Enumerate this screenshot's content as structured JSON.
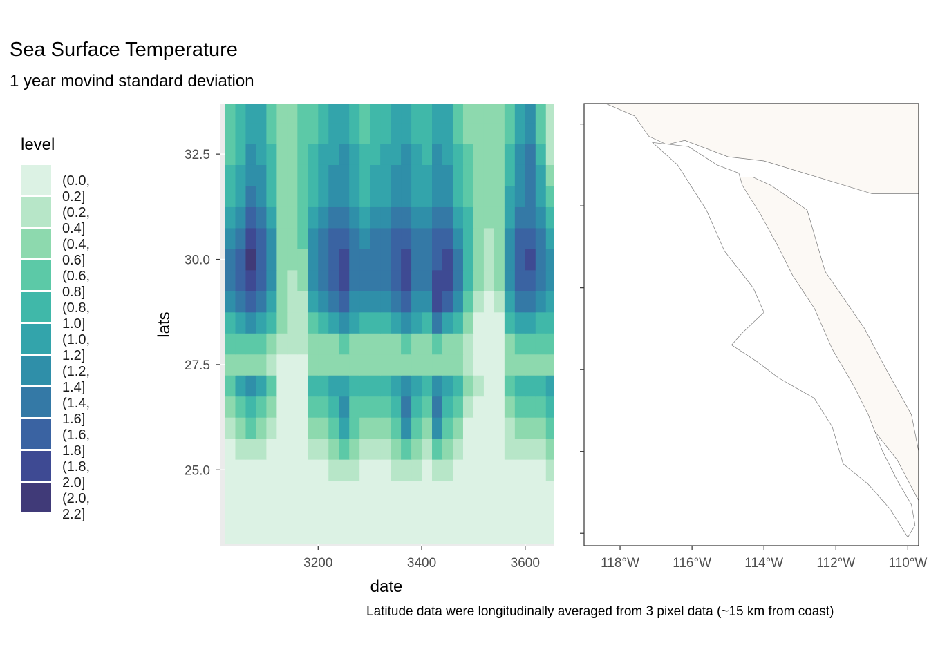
{
  "title": "Sea Surface Temperature",
  "subtitle": "1 year movind standard deviation",
  "caption": "Latitude data were longitudinally averaged from 3 pixel data (~15 km from coast)",
  "legend": {
    "title": "level",
    "items": [
      {
        "label": "(0.0, 0.2]",
        "color": "#dcf2e4"
      },
      {
        "label": "(0.2, 0.4]",
        "color": "#b7e6c8"
      },
      {
        "label": "(0.4, 0.6]",
        "color": "#8dd9ae"
      },
      {
        "label": "(0.6, 0.8]",
        "color": "#5cc9a7"
      },
      {
        "label": "(0.8, 1.0]",
        "color": "#40b8a9"
      },
      {
        "label": "(1.0, 1.2]",
        "color": "#33a4ab"
      },
      {
        "label": "(1.2, 1.4]",
        "color": "#2f8fa9"
      },
      {
        "label": "(1.4, 1.6]",
        "color": "#3479a6"
      },
      {
        "label": "(1.6, 1.8]",
        "color": "#3a63a2"
      },
      {
        "label": "(1.8, 2.0]",
        "color": "#3e4a93"
      },
      {
        "label": "(2.0, 2.2]",
        "color": "#403a78"
      }
    ]
  },
  "chart_data": [
    {
      "type": "heatmap",
      "xlabel": "date",
      "ylabel": "lats",
      "xlim": [
        3010,
        3655
      ],
      "ylim": [
        23.2,
        33.7
      ],
      "x_ticks": [
        3200,
        3400,
        3600
      ],
      "y_ticks": [
        25.0,
        27.5,
        30.0,
        32.5
      ],
      "x_tick_labels": [
        "3200",
        "3400",
        "3600"
      ],
      "y_tick_labels": [
        "25.0",
        "27.5",
        "30.0",
        "32.5"
      ],
      "grid": true,
      "x": [
        3030,
        3050,
        3070,
        3090,
        3110,
        3130,
        3150,
        3170,
        3190,
        3210,
        3230,
        3250,
        3270,
        3290,
        3310,
        3330,
        3350,
        3370,
        3390,
        3410,
        3430,
        3450,
        3470,
        3490,
        3510,
        3530,
        3550,
        3570,
        3590,
        3610,
        3630,
        3650
      ],
      "lats": [
        23.5,
        24.0,
        24.5,
        25.0,
        25.5,
        26.0,
        26.5,
        27.0,
        27.5,
        28.0,
        28.5,
        29.0,
        29.5,
        30.0,
        30.5,
        31.0,
        31.5,
        32.0,
        32.5,
        33.0,
        33.5
      ],
      "z": [
        [
          0,
          0,
          0,
          0,
          0,
          0,
          0,
          0,
          0,
          0,
          0,
          0,
          0,
          0,
          0,
          0,
          0,
          0,
          0,
          0,
          0,
          0,
          0,
          0,
          0,
          0,
          0,
          0,
          0,
          0,
          0,
          0
        ],
        [
          0,
          0,
          0,
          0,
          0,
          0,
          0,
          0,
          0,
          0,
          0,
          0,
          0,
          0,
          0,
          0,
          0,
          0,
          0,
          0,
          0,
          0,
          0,
          0,
          0,
          0,
          0,
          0,
          0,
          0,
          0,
          0
        ],
        [
          0,
          0,
          0,
          0,
          0,
          0,
          0,
          0,
          0,
          0,
          0,
          0,
          0,
          0,
          0,
          0,
          0,
          0,
          0,
          0,
          0,
          0,
          0,
          0,
          0,
          0,
          0,
          0,
          0,
          0,
          0,
          0
        ],
        [
          0,
          0,
          0,
          0,
          0,
          0,
          0,
          0,
          0,
          0,
          1,
          1,
          1,
          0,
          0,
          0,
          1,
          1,
          1,
          0,
          1,
          1,
          0,
          0,
          0,
          0,
          0,
          0,
          0,
          0,
          0,
          1
        ],
        [
          0,
          1,
          1,
          1,
          0,
          0,
          0,
          0,
          1,
          1,
          2,
          3,
          2,
          1,
          1,
          1,
          2,
          3,
          2,
          1,
          3,
          2,
          1,
          0,
          0,
          0,
          0,
          1,
          1,
          1,
          1,
          2
        ],
        [
          1,
          2,
          3,
          2,
          1,
          0,
          0,
          0,
          2,
          2,
          3,
          5,
          3,
          2,
          2,
          2,
          3,
          6,
          3,
          2,
          6,
          3,
          2,
          0,
          0,
          0,
          0,
          1,
          2,
          2,
          2,
          3
        ],
        [
          2,
          3,
          4,
          3,
          2,
          0,
          0,
          0,
          3,
          3,
          4,
          6,
          3,
          3,
          3,
          3,
          4,
          7,
          4,
          3,
          7,
          4,
          3,
          1,
          0,
          0,
          0,
          2,
          3,
          3,
          3,
          4
        ],
        [
          3,
          5,
          6,
          5,
          3,
          0,
          0,
          0,
          4,
          4,
          5,
          5,
          4,
          4,
          4,
          4,
          5,
          6,
          5,
          4,
          6,
          5,
          4,
          2,
          1,
          0,
          0,
          3,
          4,
          4,
          4,
          5
        ],
        [
          2,
          2,
          2,
          2,
          1,
          0,
          0,
          0,
          2,
          2,
          2,
          2,
          2,
          2,
          2,
          2,
          2,
          2,
          2,
          2,
          2,
          2,
          2,
          1,
          0,
          0,
          0,
          2,
          2,
          2,
          2,
          2
        ],
        [
          3,
          3,
          3,
          3,
          2,
          1,
          1,
          1,
          2,
          2,
          2,
          3,
          2,
          2,
          2,
          2,
          2,
          3,
          2,
          2,
          3,
          2,
          2,
          1,
          0,
          0,
          0,
          2,
          3,
          3,
          3,
          3
        ],
        [
          4,
          5,
          6,
          5,
          4,
          2,
          1,
          1,
          3,
          4,
          5,
          6,
          5,
          4,
          4,
          4,
          5,
          6,
          5,
          4,
          7,
          5,
          4,
          2,
          0,
          0,
          0,
          4,
          5,
          5,
          4,
          4
        ],
        [
          6,
          7,
          8,
          7,
          5,
          2,
          1,
          1,
          5,
          6,
          7,
          8,
          6,
          6,
          6,
          6,
          7,
          8,
          6,
          6,
          9,
          8,
          6,
          3,
          1,
          0,
          1,
          5,
          7,
          7,
          6,
          5
        ],
        [
          7,
          8,
          9,
          8,
          6,
          2,
          1,
          2,
          6,
          7,
          8,
          9,
          7,
          7,
          7,
          7,
          8,
          9,
          7,
          7,
          9,
          9,
          7,
          4,
          2,
          1,
          2,
          6,
          8,
          8,
          7,
          6
        ],
        [
          7,
          8,
          10,
          8,
          6,
          2,
          2,
          2,
          6,
          7,
          8,
          9,
          7,
          7,
          7,
          7,
          8,
          9,
          7,
          7,
          8,
          9,
          7,
          4,
          2,
          1,
          2,
          6,
          8,
          9,
          7,
          6
        ],
        [
          6,
          7,
          9,
          8,
          6,
          2,
          2,
          3,
          6,
          7,
          8,
          8,
          7,
          6,
          7,
          7,
          8,
          8,
          7,
          7,
          8,
          8,
          6,
          4,
          2,
          1,
          2,
          6,
          8,
          8,
          7,
          5
        ],
        [
          5,
          6,
          8,
          7,
          5,
          2,
          2,
          3,
          5,
          6,
          7,
          7,
          6,
          5,
          6,
          6,
          7,
          7,
          6,
          6,
          7,
          7,
          5,
          4,
          2,
          2,
          2,
          5,
          7,
          7,
          6,
          4
        ],
        [
          4,
          5,
          7,
          6,
          4,
          2,
          2,
          3,
          4,
          5,
          6,
          6,
          5,
          4,
          5,
          5,
          6,
          6,
          5,
          5,
          6,
          6,
          4,
          3,
          2,
          2,
          2,
          5,
          6,
          7,
          5,
          3
        ],
        [
          4,
          5,
          6,
          6,
          4,
          2,
          2,
          3,
          4,
          5,
          6,
          6,
          5,
          4,
          5,
          5,
          6,
          6,
          5,
          5,
          6,
          6,
          4,
          3,
          2,
          2,
          2,
          4,
          6,
          7,
          5,
          2
        ],
        [
          3,
          4,
          6,
          5,
          4,
          2,
          2,
          3,
          4,
          5,
          5,
          6,
          5,
          4,
          4,
          5,
          5,
          6,
          5,
          4,
          6,
          5,
          4,
          3,
          2,
          2,
          2,
          4,
          6,
          7,
          4,
          1
        ],
        [
          3,
          4,
          5,
          5,
          3,
          2,
          2,
          3,
          3,
          4,
          5,
          5,
          4,
          3,
          4,
          4,
          5,
          5,
          4,
          4,
          5,
          5,
          3,
          2,
          2,
          2,
          2,
          3,
          5,
          6,
          3,
          1
        ],
        [
          3,
          4,
          5,
          5,
          3,
          2,
          2,
          3,
          3,
          4,
          5,
          5,
          4,
          3,
          4,
          4,
          5,
          5,
          4,
          4,
          5,
          5,
          3,
          2,
          2,
          2,
          2,
          3,
          5,
          6,
          3,
          1
        ]
      ]
    },
    {
      "type": "map",
      "x_ticks": [
        -118,
        -116,
        -114,
        -112,
        -110
      ],
      "x_tick_labels": [
        "118°W",
        "116°W",
        "114°W",
        "112°W",
        "110°W"
      ],
      "xlim": [
        -119,
        -109.7
      ],
      "ylim": [
        22.7,
        33.5
      ],
      "y_ticks": [
        23,
        25,
        27,
        29,
        31,
        33
      ],
      "land_color": "#fcf9f5",
      "coast_color": "#7a7a7a"
    }
  ]
}
